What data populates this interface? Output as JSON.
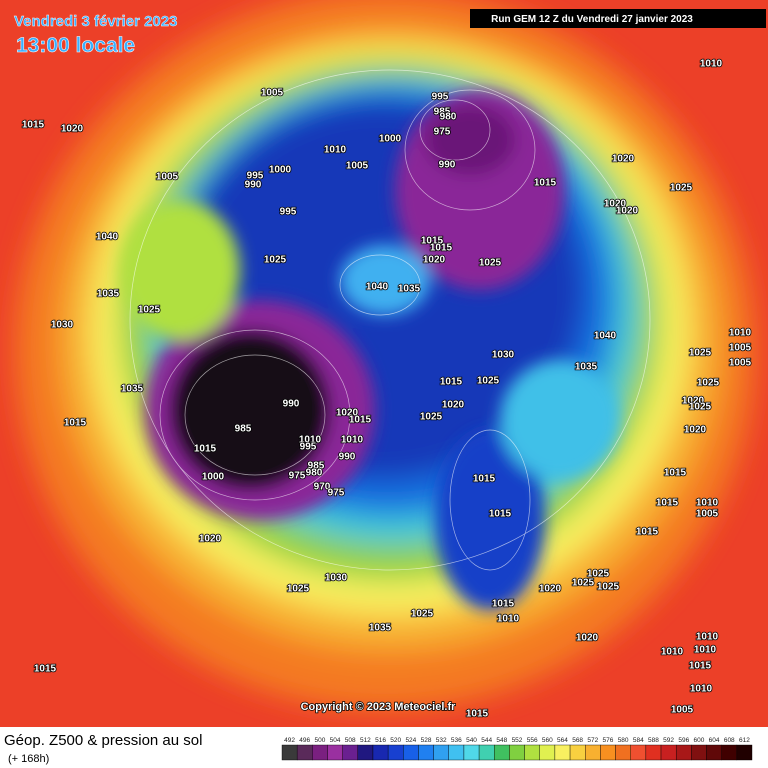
{
  "header": {
    "date": "Vendredi 3 février 2023",
    "time": "13:00 locale",
    "run": "Run GEM 12 Z du Vendredi 27 janvier 2023"
  },
  "footer": {
    "title": "Géop. Z500 & pression au sol",
    "lead": "(+ 168h)",
    "copyright": "Copyright © 2023 Meteociel.fr"
  },
  "isobar_labels": [
    1005,
    1015,
    1020,
    1010,
    995,
    985,
    980,
    975,
    1000,
    1010,
    1005,
    990,
    1020,
    1005,
    995,
    990,
    1000,
    1015,
    1025,
    995,
    1020,
    1020,
    1040,
    1015,
    1015,
    1020,
    1025,
    1025,
    1040,
    1035,
    1035,
    1025,
    1030,
    1040,
    1010,
    1005,
    1005,
    1025,
    1030,
    1035,
    1025,
    1015,
    1025,
    1035,
    990,
    1020,
    1015,
    1020,
    1025,
    1020,
    1025,
    1015,
    985,
    1020,
    1010,
    1010,
    995,
    990,
    985,
    980,
    1015,
    1015,
    1000,
    975,
    1015,
    970,
    975,
    1015,
    1015,
    1010,
    1005,
    1015,
    1020,
    1030,
    1025,
    1020,
    1025,
    1025,
    1025,
    1035,
    1025,
    1015,
    1010,
    1020,
    1010,
    1010,
    1015,
    1010,
    1015,
    1010,
    1005,
    1015
  ],
  "scale": [
    492,
    496,
    500,
    504,
    508,
    512,
    516,
    520,
    524,
    528,
    532,
    536,
    540,
    544,
    548,
    552,
    556,
    560,
    564,
    568,
    572,
    576,
    580,
    584,
    588,
    592,
    596,
    600,
    604,
    608,
    612
  ],
  "scale_colors": [
    "#3a3a3a",
    "#5a2a5a",
    "#7a2080",
    "#9a30a0",
    "#6a2090",
    "#201880",
    "#1828b0",
    "#1840d0",
    "#1860e8",
    "#2080f0",
    "#30a0f0",
    "#40c0f0",
    "#50d8e8",
    "#40d0b0",
    "#40c060",
    "#80d040",
    "#b0e040",
    "#e0f050",
    "#f8f060",
    "#f8d040",
    "#f8b030",
    "#f89020",
    "#f07020",
    "#f05030",
    "#e03020",
    "#c82020",
    "#a81818",
    "#801010",
    "#600808",
    "#400000",
    "#200000"
  ]
}
